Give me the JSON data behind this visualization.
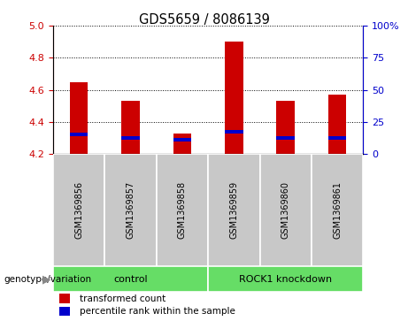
{
  "title": "GDS5659 / 8086139",
  "samples": [
    "GSM1369856",
    "GSM1369857",
    "GSM1369858",
    "GSM1369859",
    "GSM1369860",
    "GSM1369861"
  ],
  "red_values": [
    4.65,
    4.53,
    4.33,
    4.9,
    4.53,
    4.57
  ],
  "blue_values": [
    4.32,
    4.3,
    4.29,
    4.34,
    4.3,
    4.3
  ],
  "y_min": 4.2,
  "y_max": 5.0,
  "y_ticks": [
    4.2,
    4.4,
    4.6,
    4.8,
    5.0
  ],
  "y2_ticks": [
    0,
    25,
    50,
    75,
    100
  ],
  "y2_tick_labels": [
    "0",
    "25",
    "50",
    "75",
    "100%"
  ],
  "bar_width": 0.35,
  "bar_base": 4.2,
  "red_color": "#cc0000",
  "blue_color": "#0000cc",
  "sample_bg": "#c8c8c8",
  "group_bg": "#66dd66",
  "legend_red": "transformed count",
  "legend_blue": "percentile rank within the sample",
  "genotype_label": "genotype/variation",
  "control_label": "control",
  "knockdown_label": "ROCK1 knockdown",
  "fig_width": 4.61,
  "fig_height": 3.63,
  "dpi": 100
}
